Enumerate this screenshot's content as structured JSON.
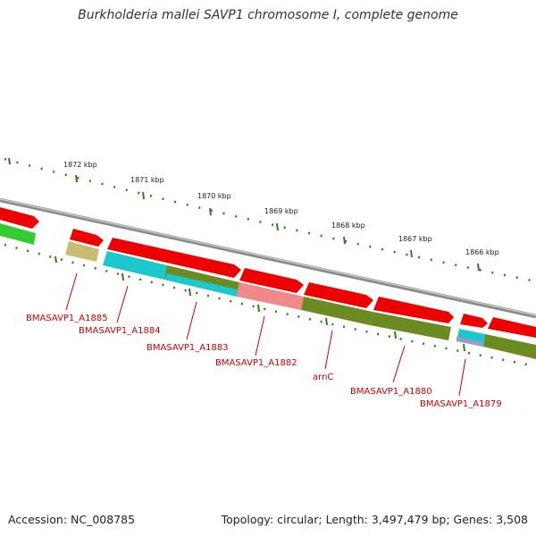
{
  "title": "Burkholderia mallei SAVP1 chromosome I, complete genome",
  "footer": {
    "accession": "Accession: NC_008785",
    "topology": "Topology: circular; Length: 3,497,479 bp; Genes: 3,508"
  },
  "colors": {
    "backbone": "#8a8a8a",
    "tick": "#2e7d1e",
    "label": "#cc0000",
    "forward_gene": "#ee0000",
    "cyan_gene": "#1cc8cc",
    "olive_gene": "#6b8a22",
    "khaki_gene": "#c8bc70",
    "pink_gene": "#f08a8a",
    "green_gene": "#33cc33",
    "lavender_gene": "#9a9ad0"
  },
  "bp_ticks": [
    "1872 kbp",
    "1871 kbp",
    "1870 kbp",
    "1869 kbp",
    "1868 kbp",
    "1867 kbp",
    "1866 kbp"
  ],
  "gene_labels": [
    "BMASAVP1_A1885",
    "BMASAVP1_A1884",
    "BMASAVP1_A1883",
    "BMASAVP1_A1882",
    "arnC",
    "BMASAVP1_A1880",
    "BMASAVP1_A1879"
  ]
}
